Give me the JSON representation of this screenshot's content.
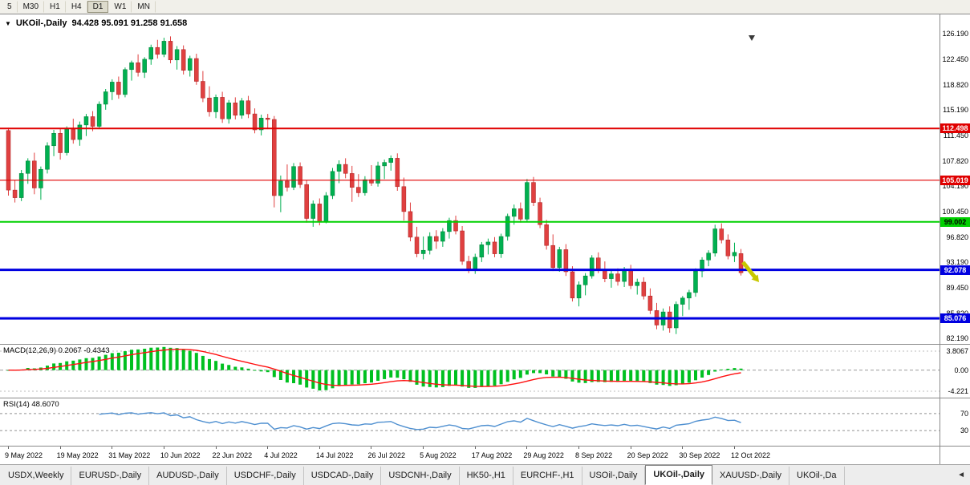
{
  "toolbar": {
    "timeframes": [
      "5",
      "M30",
      "H1",
      "H4",
      "D1",
      "W1",
      "MN"
    ],
    "active": "D1"
  },
  "chart_header": {
    "dropdown_icon": "▼",
    "symbol": "UKOil-,Daily",
    "ohlc": "94.428 95.091 91.258 91.658"
  },
  "chart_data": {
    "type": "candlestick",
    "symbol": "UKOil-,Daily",
    "price_axis_ticks": [
      "126.190",
      "122.450",
      "118.820",
      "115.190",
      "111.450",
      "107.820",
      "104.190",
      "100.450",
      "96.820",
      "93.190",
      "89.450",
      "85.820",
      "82.190"
    ],
    "date_labels": [
      "9 May 2022",
      "19 May 2022",
      "31 May 2022",
      "10 Jun 2022",
      "22 Jun 2022",
      "4 Jul 2022",
      "14 Jul 2022",
      "26 Jul 2022",
      "5 Aug 2022",
      "17 Aug 2022",
      "29 Aug 2022",
      "8 Sep 2022",
      "20 Sep 2022",
      "30 Sep 2022",
      "12 Oct 2022"
    ],
    "colors": {
      "up": "#00B050",
      "down": "#E04040",
      "up_edge": "#007a35",
      "down_edge": "#a82020"
    },
    "hlines": [
      {
        "value": 112.498,
        "label": "112.498",
        "color": "#E00000",
        "text_color": "#ffffff",
        "width": 2
      },
      {
        "value": 105.019,
        "label": "105.019",
        "color": "#E00000",
        "text_color": "#ffffff",
        "width": 1.2
      },
      {
        "value": 99.002,
        "label": "99.002",
        "color": "#00D000",
        "text_color": "#000000",
        "width": 2
      },
      {
        "value": 92.078,
        "label": "92.078",
        "color": "#0000E0",
        "text_color": "#ffffff",
        "width": 3
      },
      {
        "value": 85.076,
        "label": "85.076",
        "color": "#0000E0",
        "text_color": "#ffffff",
        "width": 3
      }
    ],
    "candles": [
      [
        112.2,
        112.6,
        102.8,
        103.6
      ],
      [
        103.6,
        105.0,
        101.8,
        102.5
      ],
      [
        102.5,
        106.5,
        102.0,
        106.0
      ],
      [
        106.0,
        108.2,
        104.5,
        107.8
      ],
      [
        107.8,
        109.0,
        103.0,
        103.9
      ],
      [
        103.9,
        107.0,
        102.2,
        106.6
      ],
      [
        106.6,
        110.5,
        106.0,
        110.0
      ],
      [
        110.0,
        112.3,
        108.5,
        111.8
      ],
      [
        111.8,
        112.5,
        108.0,
        109.0
      ],
      [
        109.0,
        112.8,
        108.6,
        112.4
      ],
      [
        112.4,
        113.9,
        110.3,
        110.9
      ],
      [
        110.9,
        113.5,
        110.0,
        113.0
      ],
      [
        113.0,
        114.6,
        111.4,
        114.2
      ],
      [
        114.2,
        115.0,
        112.1,
        112.8
      ],
      [
        112.8,
        116.4,
        112.4,
        116.0
      ],
      [
        116.0,
        118.2,
        115.2,
        117.8
      ],
      [
        117.8,
        119.6,
        116.6,
        119.2
      ],
      [
        119.2,
        120.0,
        116.8,
        117.4
      ],
      [
        117.4,
        121.3,
        117.0,
        121.0
      ],
      [
        121.0,
        122.3,
        119.4,
        122.0
      ],
      [
        122.0,
        123.2,
        120.0,
        120.6
      ],
      [
        120.6,
        122.8,
        119.8,
        122.5
      ],
      [
        122.5,
        124.6,
        121.7,
        124.2
      ],
      [
        124.2,
        125.3,
        122.6,
        123.2
      ],
      [
        123.2,
        125.6,
        122.8,
        125.1
      ],
      [
        125.1,
        125.8,
        121.9,
        122.4
      ],
      [
        122.4,
        124.4,
        121.0,
        123.9
      ],
      [
        123.9,
        124.5,
        120.3,
        120.9
      ],
      [
        120.9,
        123.0,
        120.0,
        122.6
      ],
      [
        122.6,
        123.3,
        118.8,
        119.3
      ],
      [
        119.3,
        120.8,
        116.3,
        116.9
      ],
      [
        116.9,
        118.6,
        114.2,
        114.9
      ],
      [
        114.9,
        117.4,
        114.0,
        117.0
      ],
      [
        117.0,
        117.8,
        113.3,
        113.9
      ],
      [
        113.9,
        116.6,
        113.2,
        116.2
      ],
      [
        116.2,
        117.0,
        113.8,
        114.4
      ],
      [
        114.4,
        116.9,
        113.9,
        116.5
      ],
      [
        116.5,
        117.2,
        114.0,
        114.6
      ],
      [
        114.6,
        115.4,
        111.8,
        112.3
      ],
      [
        112.3,
        114.5,
        111.5,
        114.0
      ],
      [
        114.0,
        114.6,
        112.4,
        113.8
      ],
      [
        113.8,
        114.3,
        101.1,
        102.8
      ],
      [
        102.8,
        105.7,
        100.4,
        104.9
      ],
      [
        104.9,
        107.3,
        103.4,
        104.0
      ],
      [
        104.0,
        107.5,
        103.6,
        107.0
      ],
      [
        107.0,
        107.6,
        103.9,
        104.4
      ],
      [
        104.4,
        105.0,
        98.9,
        99.5
      ],
      [
        99.5,
        102.1,
        98.3,
        101.6
      ],
      [
        101.6,
        102.4,
        98.5,
        99.1
      ],
      [
        99.1,
        103.3,
        98.8,
        102.8
      ],
      [
        102.8,
        106.8,
        102.3,
        106.3
      ],
      [
        106.3,
        107.9,
        104.6,
        107.3
      ],
      [
        107.3,
        108.2,
        105.3,
        106.0
      ],
      [
        106.0,
        107.1,
        101.9,
        104.0
      ],
      [
        104.0,
        105.9,
        102.6,
        103.2
      ],
      [
        103.2,
        105.6,
        102.8,
        105.1
      ],
      [
        105.1,
        107.2,
        104.2,
        104.6
      ],
      [
        104.6,
        107.7,
        104.1,
        107.1
      ],
      [
        107.1,
        108.0,
        105.2,
        107.6
      ],
      [
        107.6,
        108.6,
        106.4,
        108.2
      ],
      [
        108.2,
        108.9,
        103.5,
        104.1
      ],
      [
        104.1,
        105.4,
        99.2,
        100.5
      ],
      [
        100.5,
        101.8,
        96.2,
        96.8
      ],
      [
        96.8,
        98.3,
        93.9,
        94.4
      ],
      [
        94.4,
        96.9,
        93.6,
        94.9
      ],
      [
        94.9,
        97.5,
        94.3,
        96.9
      ],
      [
        96.9,
        97.8,
        95.1,
        96.2
      ],
      [
        96.2,
        98.1,
        95.4,
        97.6
      ],
      [
        97.6,
        99.6,
        96.6,
        99.2
      ],
      [
        99.2,
        99.9,
        97.2,
        97.7
      ],
      [
        97.7,
        98.4,
        92.8,
        93.3
      ],
      [
        93.3,
        94.1,
        91.6,
        92.2
      ],
      [
        92.2,
        94.4,
        91.5,
        93.9
      ],
      [
        93.9,
        96.1,
        93.2,
        95.7
      ],
      [
        95.7,
        96.6,
        94.3,
        96.1
      ],
      [
        96.1,
        96.8,
        93.9,
        94.4
      ],
      [
        94.4,
        97.3,
        93.8,
        96.9
      ],
      [
        96.9,
        100.2,
        96.3,
        99.8
      ],
      [
        99.8,
        101.5,
        98.6,
        100.9
      ],
      [
        100.9,
        101.8,
        98.9,
        99.4
      ],
      [
        99.4,
        105.2,
        99.0,
        104.7
      ],
      [
        104.7,
        105.5,
        101.3,
        101.8
      ],
      [
        101.8,
        102.5,
        98.1,
        98.6
      ],
      [
        98.6,
        99.3,
        95.0,
        95.6
      ],
      [
        95.6,
        97.2,
        91.9,
        92.4
      ],
      [
        92.4,
        95.4,
        91.8,
        95.0
      ],
      [
        95.0,
        95.8,
        91.2,
        91.8
      ],
      [
        91.8,
        92.6,
        87.5,
        88.0
      ],
      [
        88.0,
        90.4,
        86.8,
        89.9
      ],
      [
        89.9,
        91.6,
        88.4,
        91.2
      ],
      [
        91.2,
        94.2,
        90.8,
        93.8
      ],
      [
        93.8,
        94.6,
        91.6,
        92.1
      ],
      [
        92.1,
        93.3,
        90.3,
        90.8
      ],
      [
        90.8,
        92.0,
        89.5,
        91.5
      ],
      [
        91.5,
        92.3,
        89.8,
        90.4
      ],
      [
        90.4,
        92.5,
        89.6,
        92.0
      ],
      [
        92.0,
        92.8,
        89.3,
        89.8
      ],
      [
        89.8,
        90.8,
        88.5,
        90.3
      ],
      [
        90.3,
        91.0,
        87.8,
        88.3
      ],
      [
        88.3,
        89.4,
        85.7,
        86.2
      ],
      [
        86.2,
        87.3,
        83.5,
        84.1
      ],
      [
        84.1,
        86.5,
        83.3,
        86.0
      ],
      [
        86.0,
        86.8,
        83.0,
        83.7
      ],
      [
        83.7,
        87.5,
        82.8,
        87.1
      ],
      [
        87.1,
        88.3,
        85.4,
        88.0
      ],
      [
        88.0,
        89.2,
        86.3,
        88.8
      ],
      [
        88.8,
        92.3,
        88.2,
        91.9
      ],
      [
        91.9,
        93.9,
        91.0,
        93.5
      ],
      [
        93.5,
        94.9,
        92.6,
        94.5
      ],
      [
        94.5,
        98.6,
        94.0,
        98.0
      ],
      [
        98.0,
        98.8,
        95.9,
        96.4
      ],
      [
        96.4,
        97.2,
        93.6,
        94.1
      ],
      [
        94.1,
        96.0,
        93.2,
        94.6
      ],
      [
        94.428,
        95.091,
        91.258,
        91.658
      ]
    ],
    "indicators": {
      "macd": {
        "label": "MACD(12,26,9) 0.2067 -0.4343",
        "fast": 12,
        "slow": 26,
        "signal_period": 9,
        "axis_ticks": [
          "3.8067",
          "0.00",
          "-4.221"
        ],
        "histogram_color": "#00C020",
        "signal_color": "#FF1010"
      },
      "rsi": {
        "label": "RSI(14) 48.6070",
        "period": 14,
        "levels": [
          "70",
          "30"
        ],
        "line_color": "#4E8FD0"
      }
    },
    "annotations": {
      "sell_arrow": {
        "type": "down-right-arrow",
        "color": "#C8C800"
      },
      "shift_marker": {
        "color": "#3a3a3a"
      }
    }
  },
  "tabs": {
    "items": [
      "USDX,Weekly",
      "EURUSD-,Daily",
      "AUDUSD-,Daily",
      "USDCHF-,Daily",
      "USDCAD-,Daily",
      "USDCNH-,Daily",
      "HK50-,H1",
      "EURCHF-,H1",
      "USOil-,Daily",
      "UKOil-,Daily",
      "XAUUSD-,Daily",
      "UKOil-,Da"
    ],
    "active": "UKOil-,Daily",
    "scroll_left_label": "◄"
  }
}
